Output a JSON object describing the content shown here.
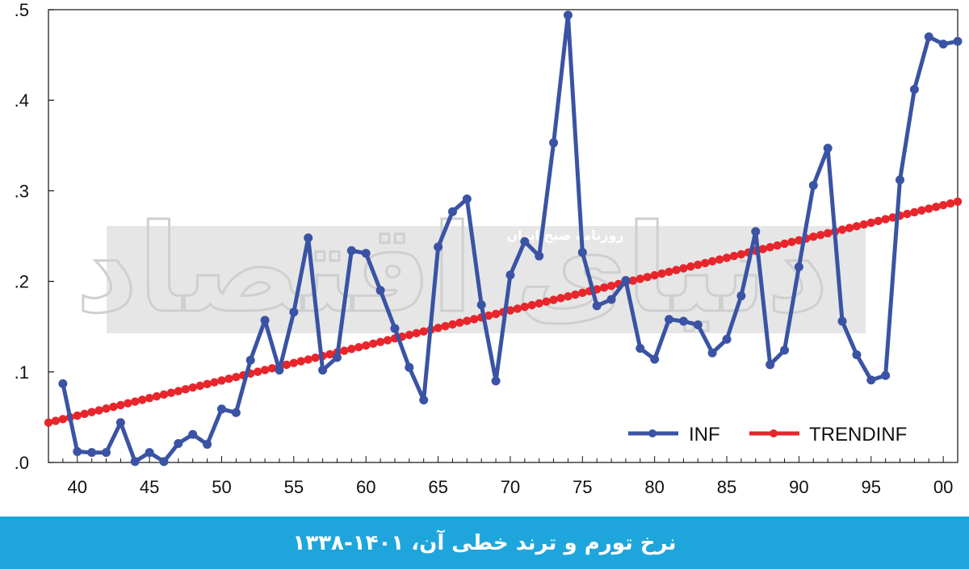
{
  "chart_data": {
    "type": "line",
    "xlabel": "",
    "ylabel": "",
    "title": "",
    "xlim": [
      1338,
      1401
    ],
    "ylim": [
      0,
      0.5
    ],
    "grid": false,
    "legend_position": "bottom-right",
    "x_ticks": [
      1340,
      1345,
      1350,
      1355,
      1360,
      1365,
      1370,
      1375,
      1380,
      1385,
      1390,
      1395,
      1400
    ],
    "x_tick_labels": [
      "40",
      "45",
      "50",
      "55",
      "60",
      "65",
      "70",
      "75",
      "80",
      "85",
      "90",
      "95",
      "00"
    ],
    "y_ticks": [
      0,
      0.1,
      0.2,
      0.3,
      0.4,
      0.5
    ],
    "y_tick_labels": [
      ".0",
      ".1",
      ".2",
      ".3",
      ".4",
      ".5"
    ],
    "series": [
      {
        "name": "INF",
        "color": "#3a53a4",
        "x": [
          1339,
          1340,
          1341,
          1342,
          1343,
          1344,
          1345,
          1346,
          1347,
          1348,
          1349,
          1350,
          1351,
          1352,
          1353,
          1354,
          1355,
          1356,
          1357,
          1358,
          1359,
          1360,
          1361,
          1362,
          1363,
          1364,
          1365,
          1366,
          1367,
          1368,
          1369,
          1370,
          1371,
          1372,
          1373,
          1374,
          1375,
          1376,
          1377,
          1378,
          1379,
          1380,
          1381,
          1382,
          1383,
          1384,
          1385,
          1386,
          1387,
          1388,
          1389,
          1390,
          1391,
          1392,
          1393,
          1394,
          1395,
          1396,
          1397,
          1398,
          1399,
          1400,
          1401
        ],
        "values": [
          0.087,
          0.012,
          0.011,
          0.011,
          0.044,
          0.001,
          0.011,
          0.001,
          0.021,
          0.031,
          0.02,
          0.059,
          0.055,
          0.113,
          0.157,
          0.102,
          0.166,
          0.248,
          0.102,
          0.116,
          0.234,
          0.231,
          0.19,
          0.148,
          0.105,
          0.069,
          0.238,
          0.277,
          0.291,
          0.174,
          0.09,
          0.207,
          0.244,
          0.228,
          0.353,
          0.494,
          0.232,
          0.173,
          0.18,
          0.201,
          0.126,
          0.114,
          0.158,
          0.156,
          0.152,
          0.121,
          0.136,
          0.184,
          0.255,
          0.108,
          0.124,
          0.216,
          0.306,
          0.347,
          0.156,
          0.119,
          0.091,
          0.096,
          0.312,
          0.412,
          0.47,
          0.462,
          0.465
        ]
      },
      {
        "name": "TRENDINF",
        "color": "#e8252b",
        "x_start": 1338,
        "x_end": 1401,
        "start_value": 0.044,
        "end_value": 0.288,
        "values": "linear"
      }
    ]
  },
  "caption": {
    "text": "نرخ تورم و ترند خطی آن، ۱۴۰۱-۱۳۳۸",
    "background": "#1ea6dc"
  },
  "watermark": {
    "text": "روزنامه صبح ایران",
    "logo_text": "دنیای اقتصاد"
  }
}
